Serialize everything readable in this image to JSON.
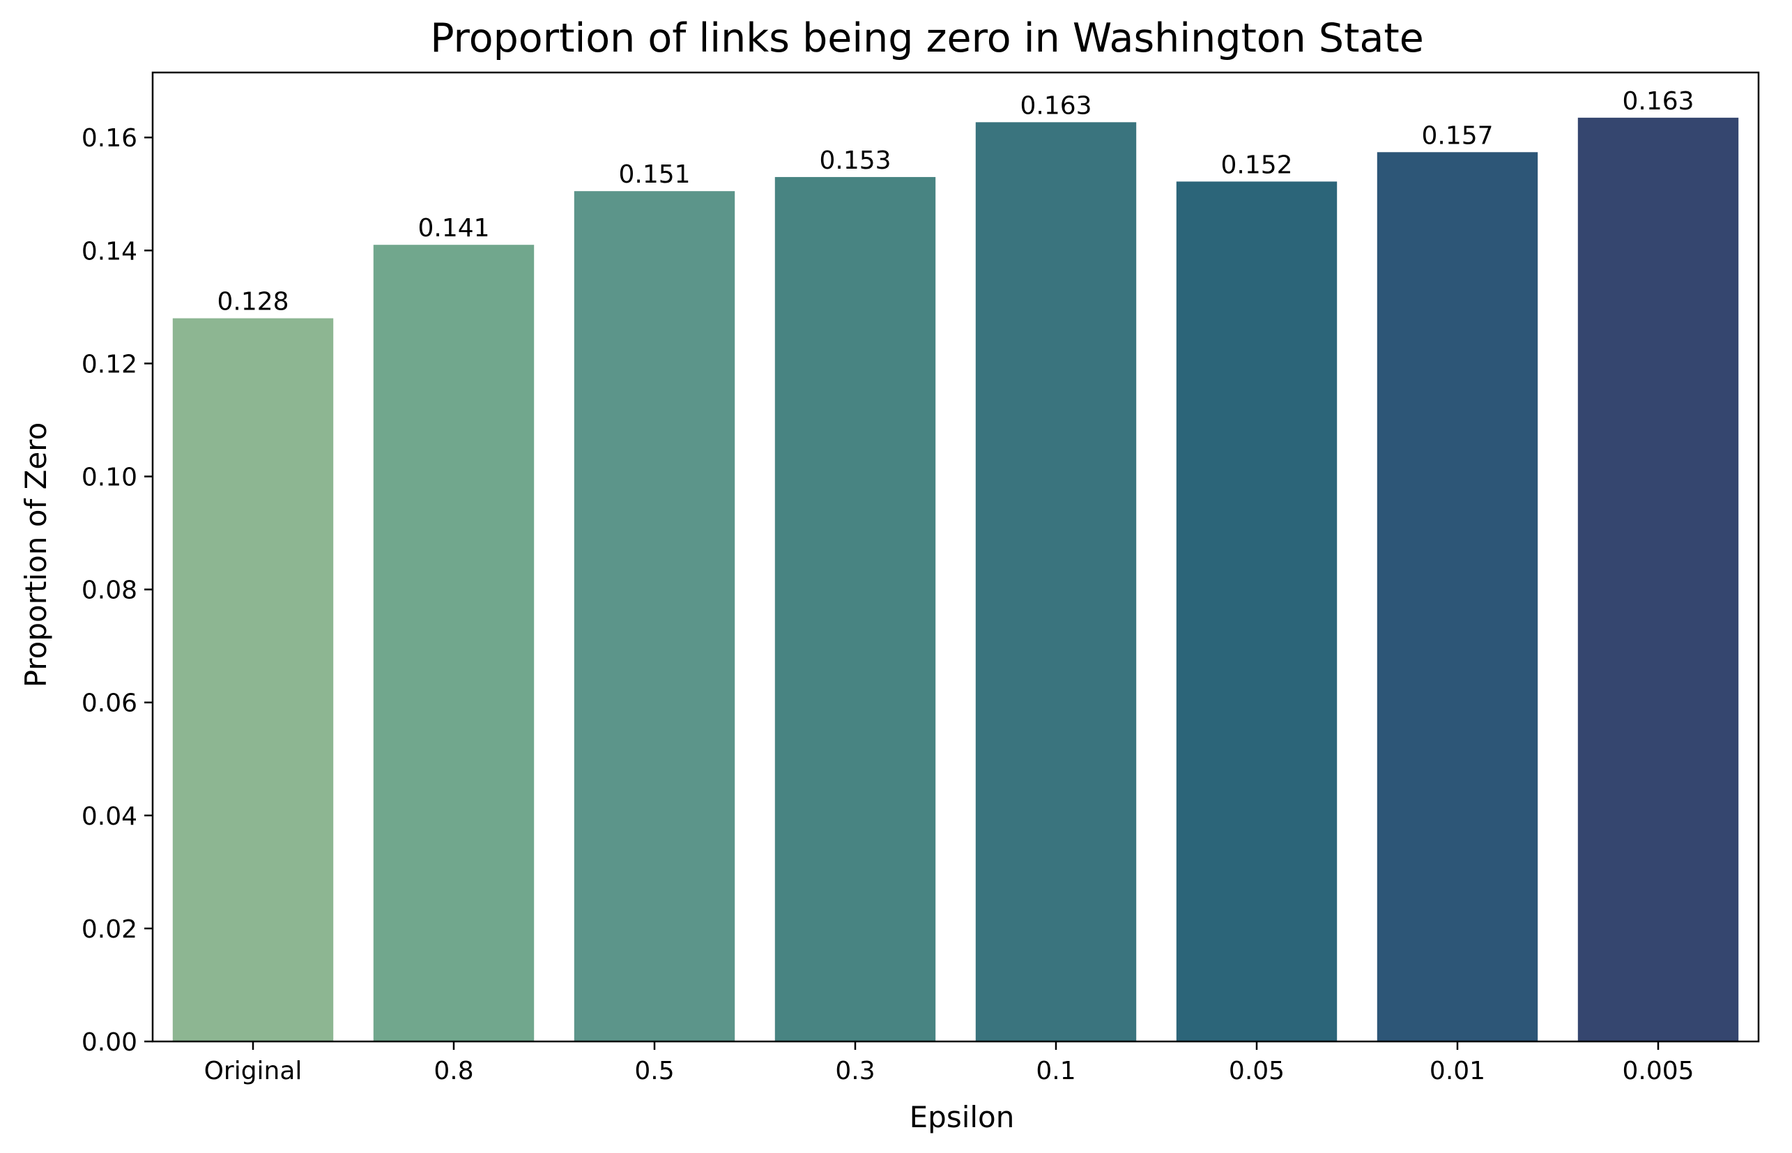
{
  "chart_data": {
    "type": "bar",
    "title": "Proportion of links being zero in Washington State",
    "xlabel": "Epsilon",
    "ylabel": "Proportion of Zero",
    "categories": [
      "Original",
      "0.8",
      "0.5",
      "0.3",
      "0.1",
      "0.05",
      "0.01",
      "0.005"
    ],
    "values": [
      0.128,
      0.141,
      0.1505,
      0.153,
      0.1627,
      0.1522,
      0.1574,
      0.1635
    ],
    "value_labels": [
      "0.128",
      "0.141",
      "0.151",
      "0.153",
      "0.163",
      "0.152",
      "0.157",
      "0.163"
    ],
    "bar_colors": [
      "#8db692",
      "#71a78d",
      "#5c958a",
      "#488482",
      "#3a747e",
      "#2c6579",
      "#2d5677",
      "#35466f"
    ],
    "ylim": [
      0,
      0.1715
    ],
    "yticks": [
      0.0,
      0.02,
      0.04,
      0.06,
      0.08,
      0.1,
      0.12,
      0.14,
      0.16
    ],
    "ytick_labels": [
      "0.00",
      "0.02",
      "0.04",
      "0.06",
      "0.08",
      "0.10",
      "0.12",
      "0.14",
      "0.16"
    ],
    "grid": false,
    "legend": "none"
  }
}
